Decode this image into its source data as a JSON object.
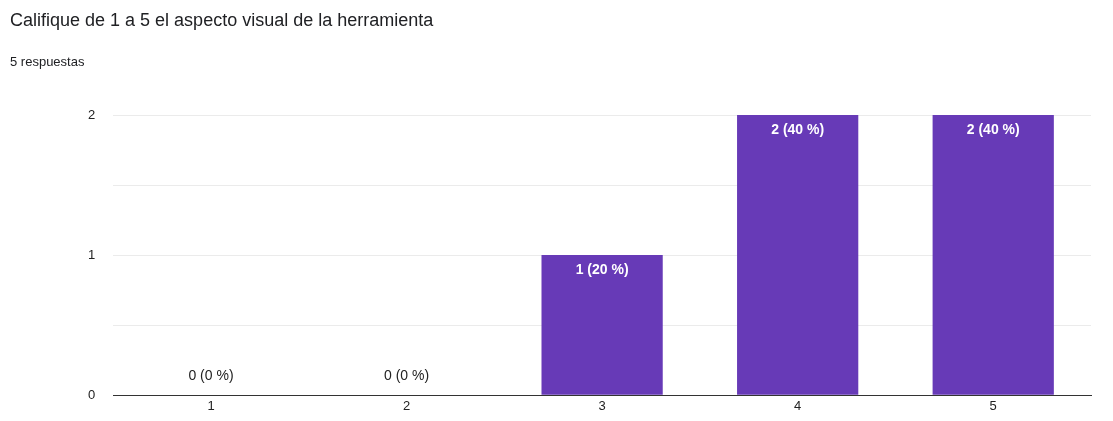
{
  "chart_data": {
    "type": "bar",
    "title": "Califique de 1 a 5 el aspecto visual de la herramienta",
    "subtitle": "5 respuestas",
    "categories": [
      "1",
      "2",
      "3",
      "4",
      "5"
    ],
    "values": [
      0,
      0,
      1,
      2,
      2
    ],
    "value_labels": [
      "0 (0 %)",
      "0 (0 %)",
      "1 (20 %)",
      "2 (40 %)",
      "2 (40 %)"
    ],
    "color": "#673ab7",
    "ylim": [
      0,
      2
    ],
    "yticks": [
      0,
      {
        "value": 0.5,
        "label": null
      },
      1,
      {
        "value": 1.5,
        "label": null
      },
      2
    ],
    "grid": "y",
    "legend": false
  }
}
